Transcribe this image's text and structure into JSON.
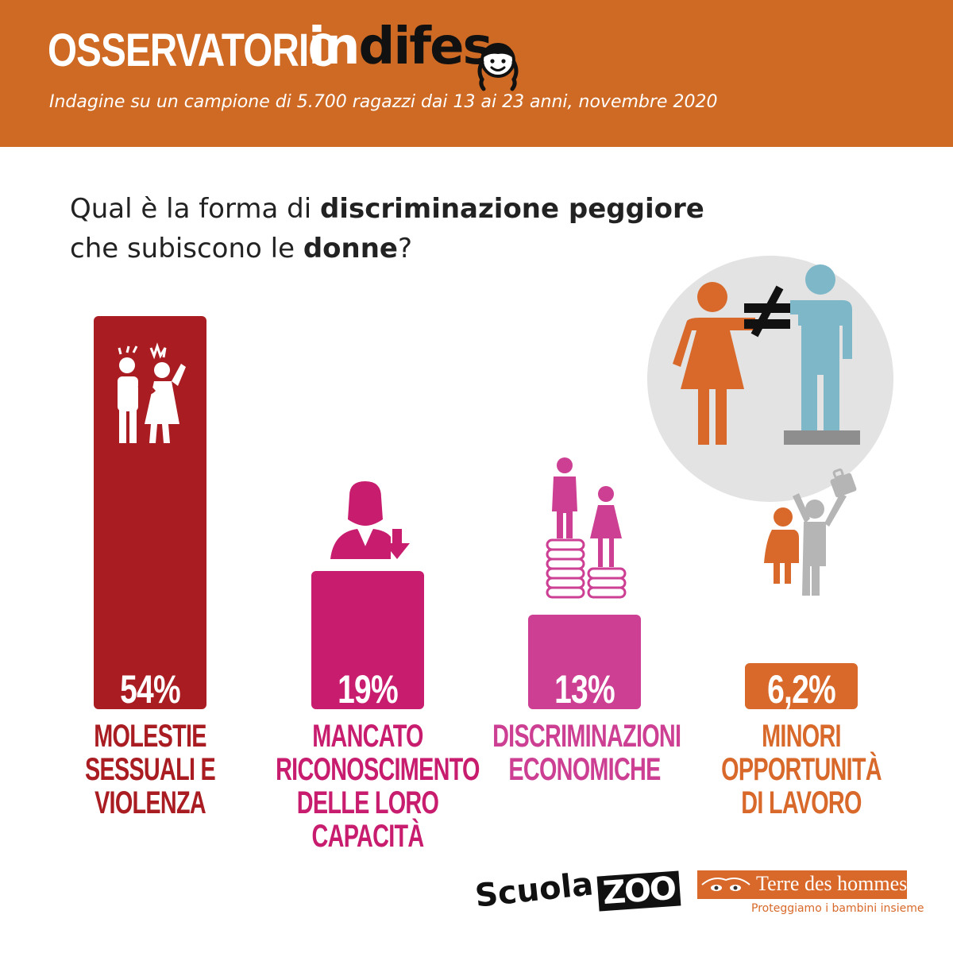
{
  "header": {
    "brand_part1": "OSSERVATORIO",
    "brand_part2_white": "in",
    "brand_part2_black": "difes",
    "subtitle": "Indagine su un campione di 5.700 ragazzi dai 13 ai 23 anni, novembre 2020",
    "background_color": "#cf6a24"
  },
  "question": {
    "part1": "Qual è la forma di ",
    "part1_bold": "discriminazione peggiore",
    "part2": "che subiscono le ",
    "part2_bold": "donne",
    "part2_end": "?"
  },
  "chart_data": {
    "type": "bar",
    "title": "",
    "xlabel": "",
    "ylabel": "",
    "ylim": [
      0,
      54
    ],
    "categories": [
      "MOLESTIE SESSUALI E VIOLENZA",
      "MANCATO RICONOSCIMENTO DELLE LORO CAPACITÀ",
      "DISCRIMINAZIONI ECONOMICHE",
      "MINORI OPPORTUNITÀ DI LAVORO"
    ],
    "category_lines": [
      [
        "MOLESTIE",
        "SESSUALI E",
        "VIOLENZA"
      ],
      [
        "MANCATO",
        "RICONOSCIMENTO",
        "DELLE LORO",
        "CAPACITÀ"
      ],
      [
        "DISCRIMINAZIONI",
        "ECONOMICHE"
      ],
      [
        "MINORI",
        "OPPORTUNITÀ",
        "DI LAVORO"
      ]
    ],
    "values": [
      54,
      19,
      13,
      6.2
    ],
    "value_labels": [
      "54%",
      "19%",
      "13%",
      "6,2%"
    ],
    "colors": [
      "#a91d22",
      "#c81c6f",
      "#cc3f93",
      "#d8692a"
    ],
    "icons": [
      "harassment-icon",
      "woman-down-arrow-icon",
      "coins-people-icon",
      "job-opportunity-icon"
    ]
  },
  "footer": {
    "logo1_part1": "Scuola",
    "logo1_part2": "ZOO",
    "logo2_name": "Terre des hommes",
    "logo2_tagline": "Proteggiamo i bambini insieme"
  }
}
